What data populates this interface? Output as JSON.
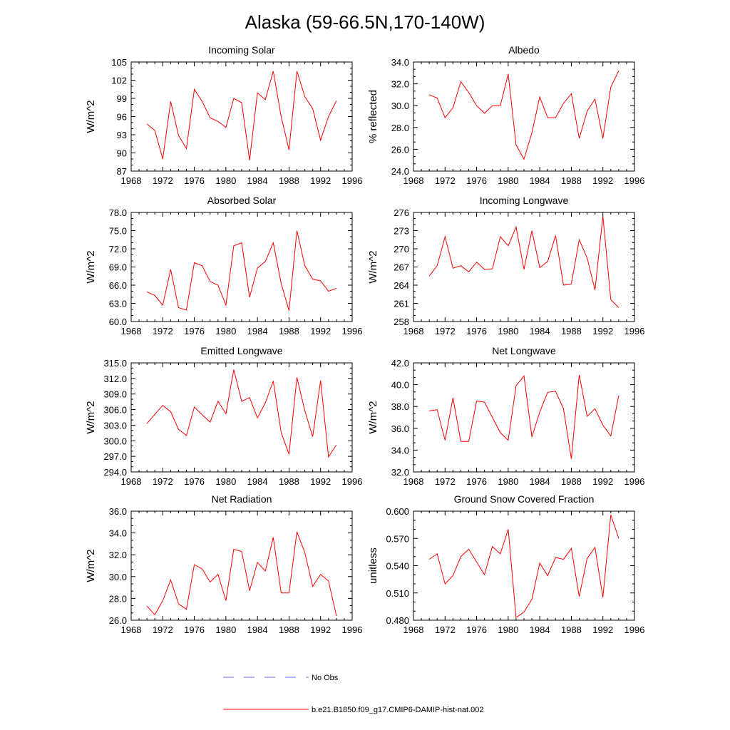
{
  "figure": {
    "title": "Alaska (59-66.5N,170-140W)",
    "line_color": "#ff0000",
    "obs_color": "#6a6aff"
  },
  "legend": {
    "entries": [
      {
        "label": "No Obs",
        "style": "dashed",
        "color": "#6a6aff"
      },
      {
        "label": "b.e21.B1850.f09_g17.CMIP6-DAMIP-hist-nat.002",
        "style": "solid",
        "color": "#ff0000"
      }
    ]
  },
  "chart_data": [
    {
      "type": "line",
      "title": "Incoming Solar",
      "xlabel": "",
      "ylabel": "W/m^2",
      "xlim": [
        1968,
        1996
      ],
      "ylim": [
        87,
        105
      ],
      "x_ticks": [
        1968,
        1972,
        1976,
        1980,
        1984,
        1988,
        1992,
        1996
      ],
      "y_ticks": [
        "87",
        "90",
        "93",
        "96",
        "99",
        "102",
        "105"
      ],
      "grid": false,
      "x": [
        1970,
        1971,
        1972,
        1973,
        1974,
        1975,
        1976,
        1977,
        1978,
        1979,
        1980,
        1981,
        1982,
        1983,
        1984,
        1985,
        1986,
        1987,
        1988,
        1989,
        1990,
        1991,
        1992,
        1993,
        1994
      ],
      "series": [
        {
          "values": [
            94.8,
            93.7,
            89.0,
            98.5,
            92.9,
            90.7,
            100.5,
            98.5,
            95.8,
            95.2,
            94.2,
            99.0,
            98.3,
            88.8,
            99.9,
            98.8,
            103.5,
            96.0,
            90.5,
            103.5,
            99.3,
            97.3,
            92.1,
            96.0,
            98.6
          ]
        }
      ]
    },
    {
      "type": "line",
      "title": "Albedo",
      "xlabel": "",
      "ylabel": "% reflected",
      "xlim": [
        1968,
        1996
      ],
      "ylim": [
        24,
        34
      ],
      "x_ticks": [
        1968,
        1972,
        1976,
        1980,
        1984,
        1988,
        1992,
        1996
      ],
      "y_ticks": [
        "24.0",
        "26.0",
        "28.0",
        "30.0",
        "32.0",
        "34.0"
      ],
      "grid": false,
      "x": [
        1970,
        1971,
        1972,
        1973,
        1974,
        1975,
        1976,
        1977,
        1978,
        1979,
        1980,
        1981,
        1982,
        1983,
        1984,
        1985,
        1986,
        1987,
        1988,
        1989,
        1990,
        1991,
        1992,
        1993,
        1994
      ],
      "series": [
        {
          "values": [
            31.0,
            30.7,
            28.9,
            29.8,
            32.2,
            31.2,
            30.0,
            29.3,
            30.0,
            30.0,
            32.9,
            26.4,
            25.1,
            27.5,
            30.8,
            28.9,
            28.9,
            30.2,
            31.1,
            27.0,
            29.5,
            30.6,
            27.0,
            31.7,
            33.2
          ]
        }
      ]
    },
    {
      "type": "line",
      "title": "Absorbed Solar",
      "xlabel": "",
      "ylabel": "W/m^2",
      "xlim": [
        1968,
        1996
      ],
      "ylim": [
        60,
        78
      ],
      "x_ticks": [
        1968,
        1972,
        1976,
        1980,
        1984,
        1988,
        1992,
        1996
      ],
      "y_ticks": [
        "60.0",
        "63.0",
        "66.0",
        "69.0",
        "72.0",
        "75.0",
        "78.0"
      ],
      "grid": false,
      "x": [
        1970,
        1971,
        1972,
        1973,
        1974,
        1975,
        1976,
        1977,
        1978,
        1979,
        1980,
        1981,
        1982,
        1983,
        1984,
        1985,
        1986,
        1987,
        1988,
        1989,
        1990,
        1991,
        1992,
        1993,
        1994
      ],
      "series": [
        {
          "values": [
            64.9,
            64.3,
            62.7,
            68.6,
            62.3,
            61.9,
            69.7,
            69.2,
            66.6,
            66.0,
            62.7,
            72.5,
            73.0,
            64.0,
            68.8,
            69.9,
            73.0,
            66.3,
            61.8,
            75.0,
            69.2,
            67.0,
            66.7,
            65.0,
            65.5
          ]
        }
      ]
    },
    {
      "type": "line",
      "title": "Incoming Longwave",
      "xlabel": "",
      "ylabel": "W/m^2",
      "xlim": [
        1968,
        1996
      ],
      "ylim": [
        258,
        276
      ],
      "x_ticks": [
        1968,
        1972,
        1976,
        1980,
        1984,
        1988,
        1992,
        1996
      ],
      "y_ticks": [
        "258",
        "261",
        "264",
        "267",
        "270",
        "273",
        "276"
      ],
      "grid": false,
      "x": [
        1970,
        1971,
        1972,
        1973,
        1974,
        1975,
        1976,
        1977,
        1978,
        1979,
        1980,
        1981,
        1982,
        1983,
        1984,
        1985,
        1986,
        1987,
        1988,
        1989,
        1990,
        1991,
        1992,
        1993,
        1994
      ],
      "series": [
        {
          "values": [
            265.5,
            267.2,
            272.0,
            266.8,
            267.2,
            266.2,
            267.8,
            266.6,
            266.7,
            272.0,
            270.5,
            273.6,
            266.6,
            273.0,
            266.9,
            267.9,
            272.2,
            264.0,
            264.2,
            271.5,
            268.5,
            263.2,
            275.4,
            261.6,
            260.3
          ]
        }
      ]
    },
    {
      "type": "line",
      "title": "Emitted Longwave",
      "xlabel": "",
      "ylabel": "W/m^2",
      "xlim": [
        1968,
        1996
      ],
      "ylim": [
        294,
        315
      ],
      "x_ticks": [
        1968,
        1972,
        1976,
        1980,
        1984,
        1988,
        1992,
        1996
      ],
      "y_ticks": [
        "294.0",
        "297.0",
        "300.0",
        "303.0",
        "306.0",
        "309.0",
        "312.0",
        "315.0"
      ],
      "grid": false,
      "x": [
        1970,
        1971,
        1972,
        1973,
        1974,
        1975,
        1976,
        1977,
        1978,
        1979,
        1980,
        1981,
        1982,
        1983,
        1984,
        1985,
        1986,
        1987,
        1988,
        1989,
        1990,
        1991,
        1992,
        1993,
        1994
      ],
      "series": [
        {
          "values": [
            303.3,
            305.1,
            306.8,
            305.6,
            302.2,
            301.0,
            306.5,
            305.0,
            303.6,
            307.6,
            305.2,
            313.7,
            307.6,
            308.3,
            304.4,
            307.3,
            311.5,
            301.6,
            297.4,
            312.2,
            305.8,
            300.8,
            311.6,
            296.9,
            299.2
          ]
        }
      ]
    },
    {
      "type": "line",
      "title": "Net Longwave",
      "xlabel": "",
      "ylabel": "W/m^2",
      "xlim": [
        1968,
        1996
      ],
      "ylim": [
        32,
        42
      ],
      "x_ticks": [
        1968,
        1972,
        1976,
        1980,
        1984,
        1988,
        1992,
        1996
      ],
      "y_ticks": [
        "32.0",
        "34.0",
        "36.0",
        "38.0",
        "40.0",
        "42.0"
      ],
      "grid": false,
      "x": [
        1970,
        1971,
        1972,
        1973,
        1974,
        1975,
        1976,
        1977,
        1978,
        1979,
        1980,
        1981,
        1982,
        1983,
        1984,
        1985,
        1986,
        1987,
        1988,
        1989,
        1990,
        1991,
        1992,
        1993,
        1994
      ],
      "series": [
        {
          "values": [
            37.6,
            37.7,
            34.9,
            38.8,
            34.8,
            34.8,
            38.5,
            38.4,
            37.0,
            35.6,
            34.9,
            39.9,
            40.8,
            35.2,
            37.5,
            39.3,
            39.4,
            37.8,
            33.2,
            40.9,
            37.1,
            37.8,
            36.3,
            35.3,
            39.0
          ]
        }
      ]
    },
    {
      "type": "line",
      "title": "Net Radiation",
      "xlabel": "",
      "ylabel": "W/m^2",
      "xlim": [
        1968,
        1996
      ],
      "ylim": [
        26,
        36
      ],
      "x_ticks": [
        1968,
        1972,
        1976,
        1980,
        1984,
        1988,
        1992,
        1996
      ],
      "y_ticks": [
        "26.0",
        "28.0",
        "30.0",
        "32.0",
        "34.0",
        "36.0"
      ],
      "grid": false,
      "x": [
        1970,
        1971,
        1972,
        1973,
        1974,
        1975,
        1976,
        1977,
        1978,
        1979,
        1980,
        1981,
        1982,
        1983,
        1984,
        1985,
        1986,
        1987,
        1988,
        1989,
        1990,
        1991,
        1992,
        1993,
        1994
      ],
      "series": [
        {
          "values": [
            27.3,
            26.5,
            27.8,
            29.7,
            27.5,
            27.0,
            31.1,
            30.7,
            29.5,
            30.2,
            27.8,
            32.5,
            32.3,
            28.7,
            31.3,
            30.5,
            33.6,
            28.5,
            28.5,
            34.1,
            32.2,
            29.1,
            30.2,
            29.6,
            26.4
          ]
        }
      ]
    },
    {
      "type": "line",
      "title": "Ground Snow Covered Fraction",
      "xlabel": "",
      "ylabel": "unitless",
      "xlim": [
        1968,
        1996
      ],
      "ylim": [
        0.48,
        0.6
      ],
      "x_ticks": [
        1968,
        1972,
        1976,
        1980,
        1984,
        1988,
        1992,
        1996
      ],
      "y_ticks": [
        "0.480",
        "0.510",
        "0.540",
        "0.570",
        "0.600"
      ],
      "grid": false,
      "x": [
        1970,
        1971,
        1972,
        1973,
        1974,
        1975,
        1976,
        1977,
        1978,
        1979,
        1980,
        1981,
        1982,
        1983,
        1984,
        1985,
        1986,
        1987,
        1988,
        1989,
        1990,
        1991,
        1992,
        1993,
        1994
      ],
      "series": [
        {
          "values": [
            0.547,
            0.553,
            0.52,
            0.529,
            0.55,
            0.558,
            0.544,
            0.53,
            0.561,
            0.553,
            0.58,
            0.483,
            0.489,
            0.503,
            0.543,
            0.529,
            0.549,
            0.547,
            0.559,
            0.506,
            0.548,
            0.56,
            0.505,
            0.596,
            0.57
          ]
        }
      ]
    }
  ]
}
